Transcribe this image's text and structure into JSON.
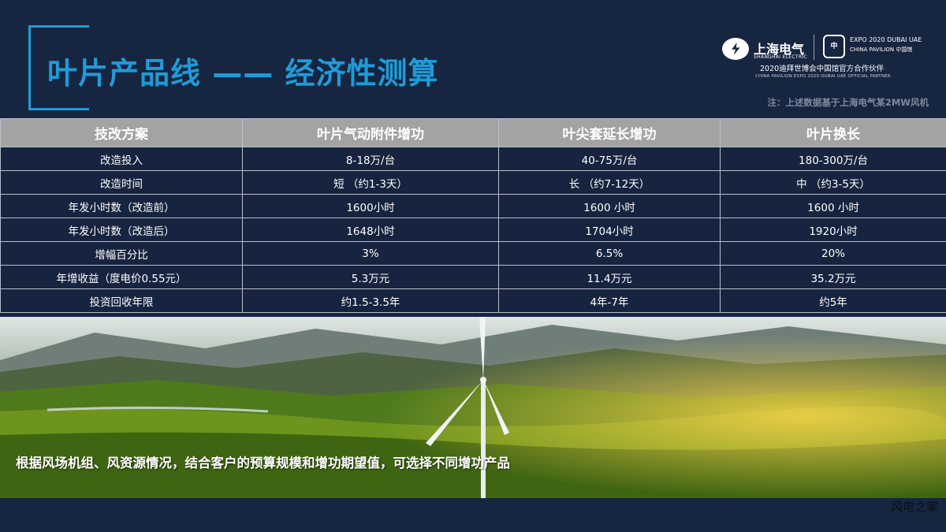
{
  "title": "叶片产品线 —— 经济性测算",
  "logo": {
    "brand_cn": "上海电气",
    "brand_en": "SHANGHAI ELECTRIC",
    "expo_line1": "EXPO 2020 DUBAI UAE",
    "expo_line2": "CHINA PAVILION 中国馆",
    "partner_cn": "2020迪拜世博会中国馆官方合作伙伴",
    "partner_en": "CHINA PAVILION EXPO 2020 DUBAI UAE OFFICIAL PARTNER"
  },
  "note": "注：上述数据基于上海电气某2MW风机",
  "table": {
    "headers": [
      "技改方案",
      "叶片气动附件增功",
      "叶尖套延长增功",
      "叶片换长"
    ],
    "rows": [
      [
        "改造投入",
        "8-18万/台",
        "40-75万/台",
        "180-300万/台"
      ],
      [
        "改造时间",
        "短 （约1-3天）",
        "长 （约7-12天）",
        "中 （约3-5天）"
      ],
      [
        "年发小时数（改造前）",
        "1600小时",
        "1600 小时",
        "1600 小时"
      ],
      [
        "年发小时数（改造后）",
        "1648小时",
        "1704小时",
        "1920小时"
      ],
      [
        "增幅百分比",
        "3%",
        "6.5%",
        "20%"
      ],
      [
        "年增收益（度电价0.55元）",
        "5.3万元",
        "11.4万元",
        "35.2万元"
      ],
      [
        "投资回收年限",
        "约1.5-3.5年",
        "4年-7年",
        "约5年"
      ]
    ]
  },
  "caption": "根据风场机组、风资源情况，结合客户的预算规模和增功期望值，可选择不同增功产品",
  "watermark": "风电之家",
  "colors": {
    "background": "#162540",
    "accent_blue": "#1f9bd8",
    "header_gray": "#a3a3a3"
  }
}
